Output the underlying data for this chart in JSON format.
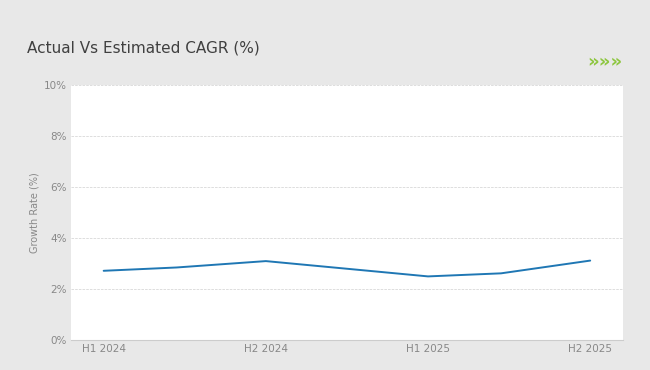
{
  "title": "Actual Vs Estimated CAGR (%)",
  "ylabel": "Growth Rate (%)",
  "outer_bg": "#e8e8e8",
  "chart_bg": "#ffffff",
  "title_color": "#404040",
  "green_line_color": "#8dc63f",
  "line_color": "#1f77b4",
  "x_labels": [
    "H1 2024",
    "H2 2024",
    "H1 2025",
    "H2 2025"
  ],
  "x_values": [
    0,
    1,
    2,
    3
  ],
  "y_values": [
    2.72,
    2.85,
    3.1,
    2.5,
    2.62,
    3.12
  ],
  "x_data": [
    0,
    0.45,
    1,
    2,
    2.45,
    3
  ],
  "ylim": [
    0,
    10
  ],
  "yticks": [
    0,
    2,
    4,
    6,
    8,
    10
  ],
  "ytick_labels": [
    "0%",
    "2%",
    "4%",
    "6%",
    "8%",
    "10%"
  ],
  "title_fontsize": 11,
  "axis_fontsize": 7.5,
  "ylabel_fontsize": 7,
  "chevron_color": "#8dc63f",
  "grid_color": "#d0d0d0",
  "border_color": "#cccccc"
}
